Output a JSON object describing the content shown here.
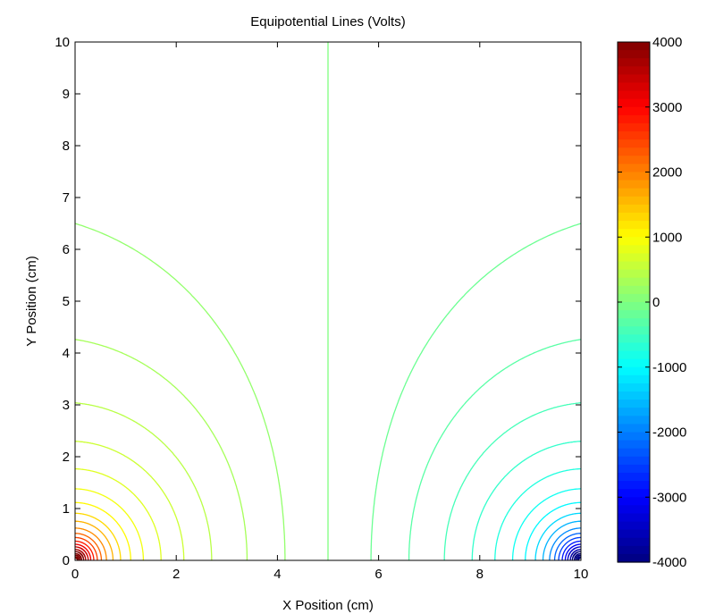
{
  "chart_data": {
    "type": "contour",
    "title": "Equipotential Lines (Volts)",
    "xlabel": "X Position (cm)",
    "ylabel": "Y Position (cm)",
    "xlim": [
      0,
      10
    ],
    "ylim": [
      0,
      10
    ],
    "x_ticks": [
      "0",
      "2",
      "4",
      "6",
      "8",
      "10"
    ],
    "y_ticks": [
      "0",
      "1",
      "2",
      "3",
      "4",
      "5",
      "6",
      "7",
      "8",
      "9",
      "10"
    ],
    "grid": false,
    "colorbar": {
      "position": "right",
      "colormap": "jet",
      "range": [
        -4000,
        4000
      ],
      "ticks": [
        "4000",
        "3000",
        "2000",
        "1000",
        "0",
        "-1000",
        "-2000",
        "-3000",
        "-4000"
      ]
    },
    "charges": [
      {
        "x": 0,
        "y": 0,
        "sign": "positive"
      },
      {
        "x": 10,
        "y": 0,
        "sign": "negative"
      }
    ],
    "series": [
      {
        "level": 0,
        "x_at_y0": 5.0
      },
      {
        "level": 150,
        "x_at_y0": 4.15
      },
      {
        "level": 300,
        "x_at_y0": 3.4
      },
      {
        "level": 450,
        "x_at_y0": 2.7
      },
      {
        "level": 600,
        "x_at_y0": 2.15
      },
      {
        "level": 750,
        "x_at_y0": 1.7
      },
      {
        "level": 900,
        "x_at_y0": 1.35
      },
      {
        "level": 1050,
        "x_at_y0": 1.1
      },
      {
        "level": 1300,
        "x_at_y0": 0.9
      },
      {
        "level": 1600,
        "x_at_y0": 0.75
      },
      {
        "level": 1900,
        "x_at_y0": 0.62
      },
      {
        "level": 2200,
        "x_at_y0": 0.52
      },
      {
        "level": 2500,
        "x_at_y0": 0.44
      },
      {
        "level": 2800,
        "x_at_y0": 0.37
      },
      {
        "level": 3100,
        "x_at_y0": 0.31
      },
      {
        "level": 3400,
        "x_at_y0": 0.26
      },
      {
        "level": 3700,
        "x_at_y0": 0.21
      },
      {
        "level": 4000,
        "x_at_y0": 0.17
      },
      {
        "level": 4300,
        "x_at_y0": 0.13
      },
      {
        "level": 4600,
        "x_at_y0": 0.1
      },
      {
        "level": 4900,
        "x_at_y0": 0.07
      },
      {
        "level": 5200,
        "x_at_y0": 0.05
      }
    ]
  }
}
